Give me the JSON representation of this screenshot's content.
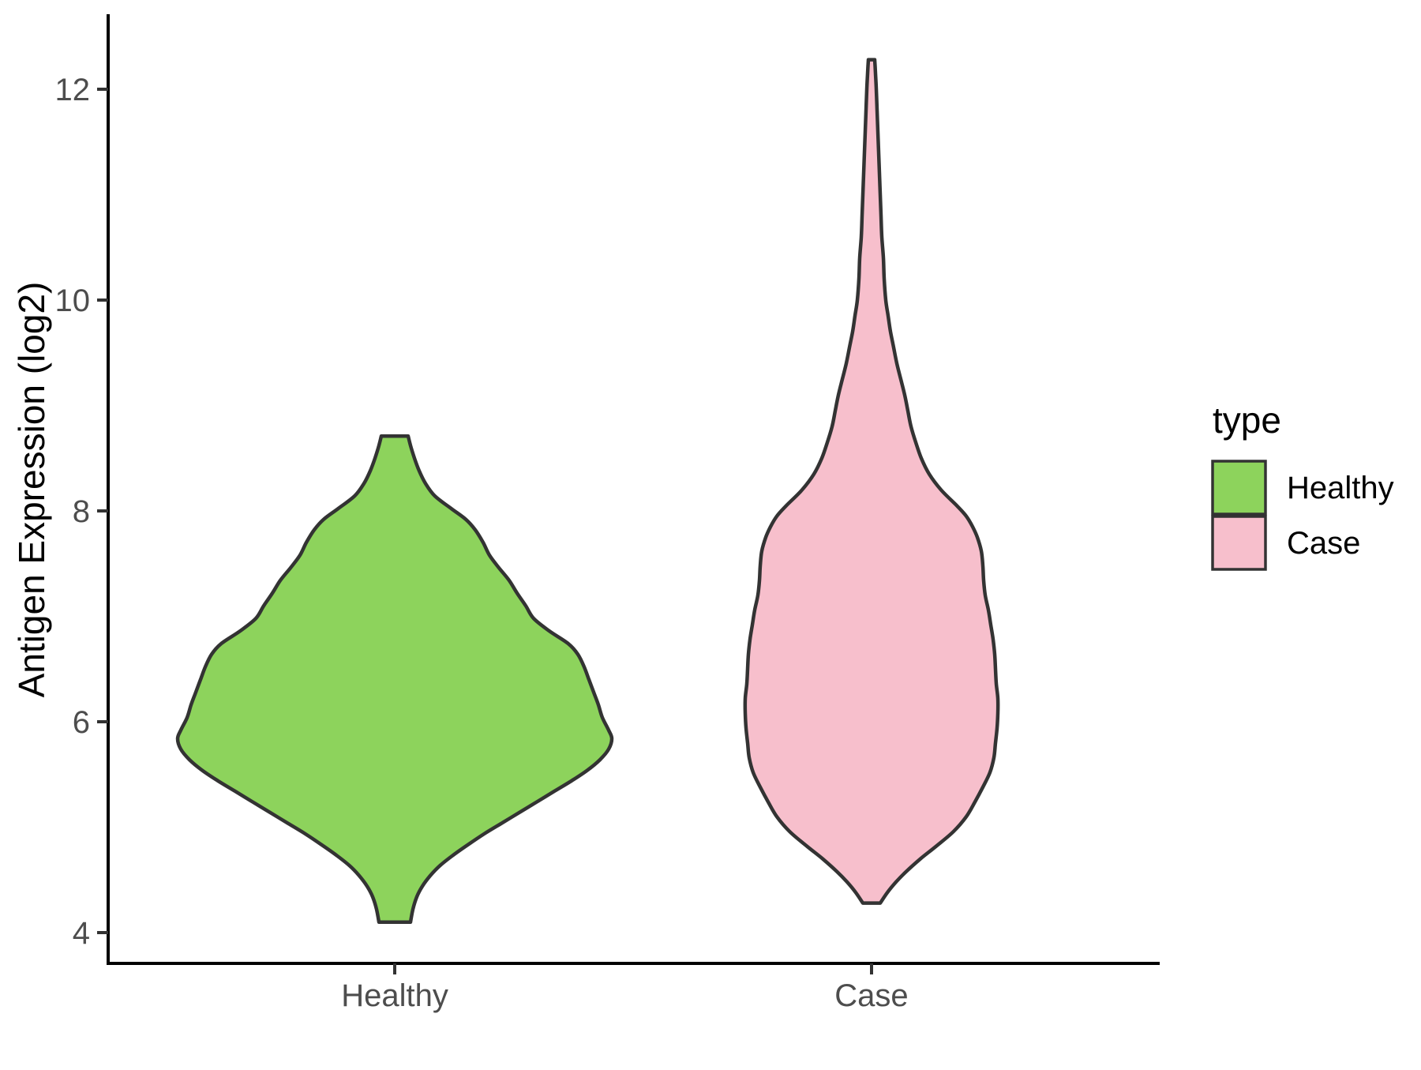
{
  "figure": {
    "background": "#FFFFFF"
  },
  "chart_data": {
    "type": "violin",
    "title": "",
    "xlabel": "",
    "ylabel": "Antigen Expression (log2)",
    "categories": [
      "Healthy",
      "Case"
    ],
    "y_ticks": [
      4,
      6,
      8,
      10,
      12
    ],
    "y_axis_range": [
      3.7,
      12.7
    ],
    "grid": "off",
    "legend": {
      "title": "type",
      "position": "right",
      "entries": [
        {
          "label": "Healthy",
          "color": "#8DD35C"
        },
        {
          "label": "Case",
          "color": "#F7BFCC"
        }
      ]
    },
    "style": {
      "healthy_fill": "#8DD35C",
      "case_fill": "#F7BFCC",
      "violin_outline": "#333333",
      "axis_line_color": "#000000",
      "tick_color": "#333333",
      "tick_label_color": "#4D4D4D"
    },
    "series": [
      {
        "name": "Healthy",
        "x_index": 0,
        "fill": "#8DD35C",
        "outline": "#333333",
        "value_range": [
          4.1,
          8.71
        ],
        "profile_units": [
          "expression_log2",
          "halfwidth_px"
        ],
        "profile": [
          [
            8.71,
            17
          ],
          [
            8.62,
            20
          ],
          [
            8.5,
            25
          ],
          [
            8.38,
            31
          ],
          [
            8.26,
            39
          ],
          [
            8.14,
            51
          ],
          [
            8.02,
            72
          ],
          [
            7.92,
            90
          ],
          [
            7.82,
            102
          ],
          [
            7.7,
            112
          ],
          [
            7.58,
            120
          ],
          [
            7.46,
            132
          ],
          [
            7.34,
            145
          ],
          [
            7.22,
            155
          ],
          [
            7.1,
            166
          ],
          [
            6.98,
            176
          ],
          [
            6.86,
            196
          ],
          [
            6.74,
            220
          ],
          [
            6.64,
            232
          ],
          [
            6.52,
            240
          ],
          [
            6.4,
            246
          ],
          [
            6.28,
            252
          ],
          [
            6.16,
            258
          ],
          [
            6.04,
            263
          ],
          [
            5.92,
            271
          ],
          [
            5.84,
            275
          ],
          [
            5.74,
            271
          ],
          [
            5.64,
            260
          ],
          [
            5.54,
            244
          ],
          [
            5.44,
            224
          ],
          [
            5.34,
            202
          ],
          [
            5.24,
            180
          ],
          [
            5.14,
            158
          ],
          [
            5.04,
            136
          ],
          [
            4.94,
            114
          ],
          [
            4.84,
            94
          ],
          [
            4.74,
            75
          ],
          [
            4.64,
            58
          ],
          [
            4.54,
            45
          ],
          [
            4.44,
            35
          ],
          [
            4.34,
            28
          ],
          [
            4.22,
            23
          ],
          [
            4.1,
            20
          ]
        ]
      },
      {
        "name": "Case",
        "x_index": 1,
        "fill": "#F7BFCC",
        "outline": "#333333",
        "value_range": [
          4.28,
          12.28
        ],
        "profile_units": [
          "expression_log2",
          "halfwidth_px"
        ],
        "profile": [
          [
            12.28,
            4
          ],
          [
            12.15,
            5
          ],
          [
            12.0,
            6
          ],
          [
            11.8,
            7
          ],
          [
            11.6,
            8
          ],
          [
            11.4,
            9
          ],
          [
            11.2,
            10
          ],
          [
            11.0,
            11
          ],
          [
            10.8,
            12
          ],
          [
            10.6,
            13
          ],
          [
            10.4,
            15
          ],
          [
            10.2,
            16
          ],
          [
            10.0,
            18
          ],
          [
            9.85,
            21
          ],
          [
            9.7,
            24
          ],
          [
            9.55,
            28
          ],
          [
            9.4,
            32
          ],
          [
            9.25,
            37
          ],
          [
            9.1,
            42
          ],
          [
            8.95,
            46
          ],
          [
            8.8,
            50
          ],
          [
            8.65,
            56
          ],
          [
            8.5,
            63
          ],
          [
            8.35,
            73
          ],
          [
            8.2,
            88
          ],
          [
            8.05,
            108
          ],
          [
            7.95,
            120
          ],
          [
            7.85,
            128
          ],
          [
            7.75,
            134
          ],
          [
            7.62,
            139
          ],
          [
            7.48,
            141
          ],
          [
            7.34,
            142
          ],
          [
            7.2,
            144
          ],
          [
            7.06,
            148
          ],
          [
            6.92,
            151
          ],
          [
            6.78,
            154
          ],
          [
            6.64,
            156
          ],
          [
            6.5,
            157
          ],
          [
            6.36,
            158
          ],
          [
            6.22,
            160
          ],
          [
            6.08,
            160
          ],
          [
            5.94,
            159
          ],
          [
            5.8,
            157
          ],
          [
            5.66,
            155
          ],
          [
            5.52,
            150
          ],
          [
            5.38,
            141
          ],
          [
            5.24,
            131
          ],
          [
            5.1,
            120
          ],
          [
            4.96,
            104
          ],
          [
            4.82,
            82
          ],
          [
            4.7,
            62
          ],
          [
            4.58,
            44
          ],
          [
            4.48,
            31
          ],
          [
            4.38,
            20
          ],
          [
            4.28,
            11
          ]
        ]
      }
    ]
  }
}
